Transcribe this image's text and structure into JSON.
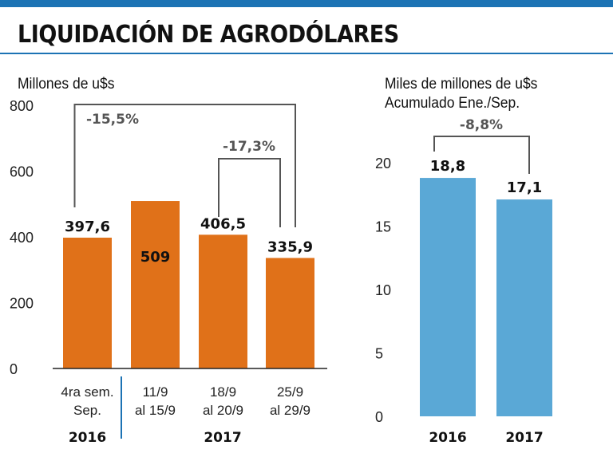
{
  "header": {
    "title": "LIQUIDACIÓN DE AGRODÓLARES",
    "accent_color": "#1c73b4"
  },
  "chart_data": [
    {
      "type": "bar",
      "ylabel": "Millones de u$s",
      "ylim": [
        0,
        800
      ],
      "yticks": [
        "800",
        "600",
        "400",
        "200",
        "0"
      ],
      "tick_values": [
        800,
        600,
        400,
        200,
        0
      ],
      "color": "#e07119",
      "categories": [
        {
          "line1": "4ra sem.",
          "line2": "Sep."
        },
        {
          "line1": "11/9",
          "line2": "al 15/9"
        },
        {
          "line1": "18/9",
          "line2": "al 20/9"
        },
        {
          "line1": "25/9",
          "line2": "al 29/9"
        }
      ],
      "values": [
        397.6,
        509,
        406.5,
        335.9
      ],
      "value_labels": [
        "397,6",
        "509",
        "406,5",
        "335,9"
      ],
      "groups": [
        "2016",
        "2017"
      ],
      "annotations": [
        {
          "text": "-15,5%",
          "from": 0,
          "to": 3
        },
        {
          "text": "-17,3%",
          "from": 2,
          "to": 3
        }
      ]
    },
    {
      "type": "bar",
      "ylabel": "Miles de millones de u$s",
      "subtitle": "Acumulado Ene./Sep.",
      "ylim": [
        0,
        20
      ],
      "yticks": [
        "20",
        "15",
        "10",
        "5",
        "0"
      ],
      "tick_values": [
        20,
        15,
        10,
        5,
        0
      ],
      "color": "#5aa8d6",
      "categories": [
        "2016",
        "2017"
      ],
      "values": [
        18.8,
        17.1
      ],
      "value_labels": [
        "18,8",
        "17,1"
      ],
      "annotations": [
        {
          "text": "-8,8%",
          "from": 0,
          "to": 1
        }
      ]
    }
  ]
}
